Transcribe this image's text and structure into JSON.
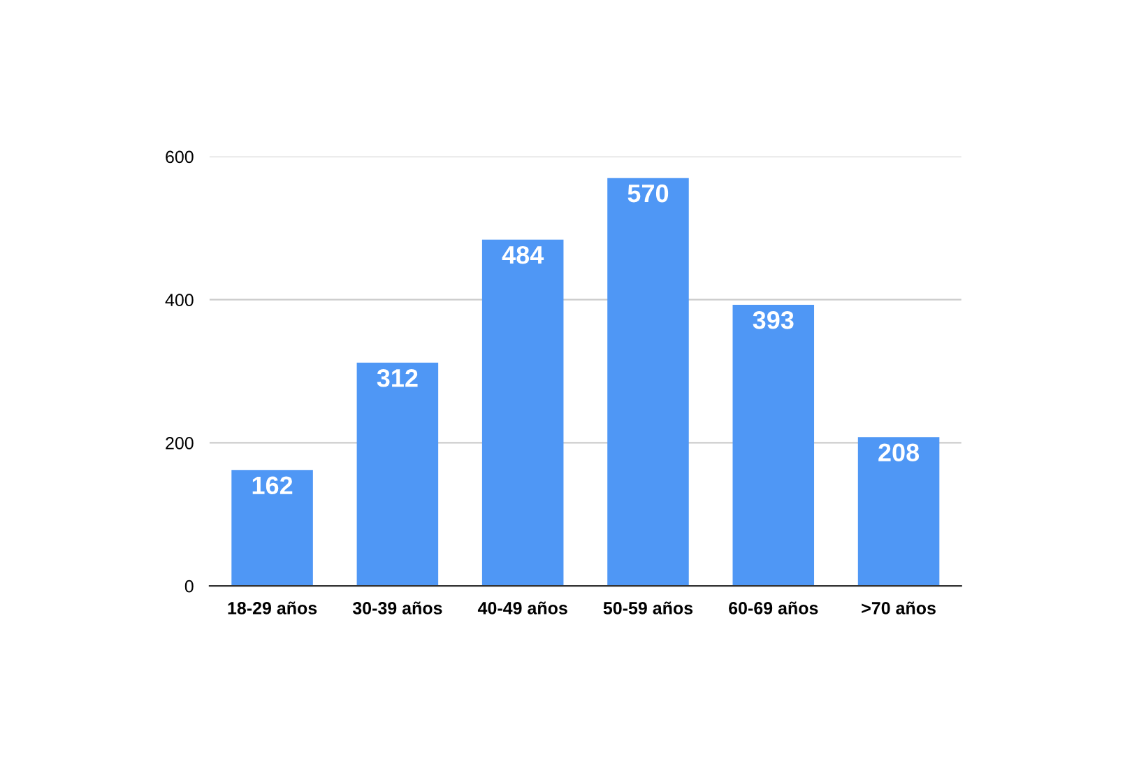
{
  "chart_data": {
    "type": "bar",
    "categories": [
      "18-29 años",
      "30-39 años",
      "40-49 años",
      "50-59 años",
      "60-69 años",
      ">70 años"
    ],
    "values": [
      162,
      312,
      484,
      570,
      393,
      208
    ],
    "color": "#4f97f5",
    "ylim": [
      0,
      600
    ],
    "yticks": [
      0,
      200,
      400,
      600
    ],
    "grid": "y",
    "data_labels": true
  }
}
